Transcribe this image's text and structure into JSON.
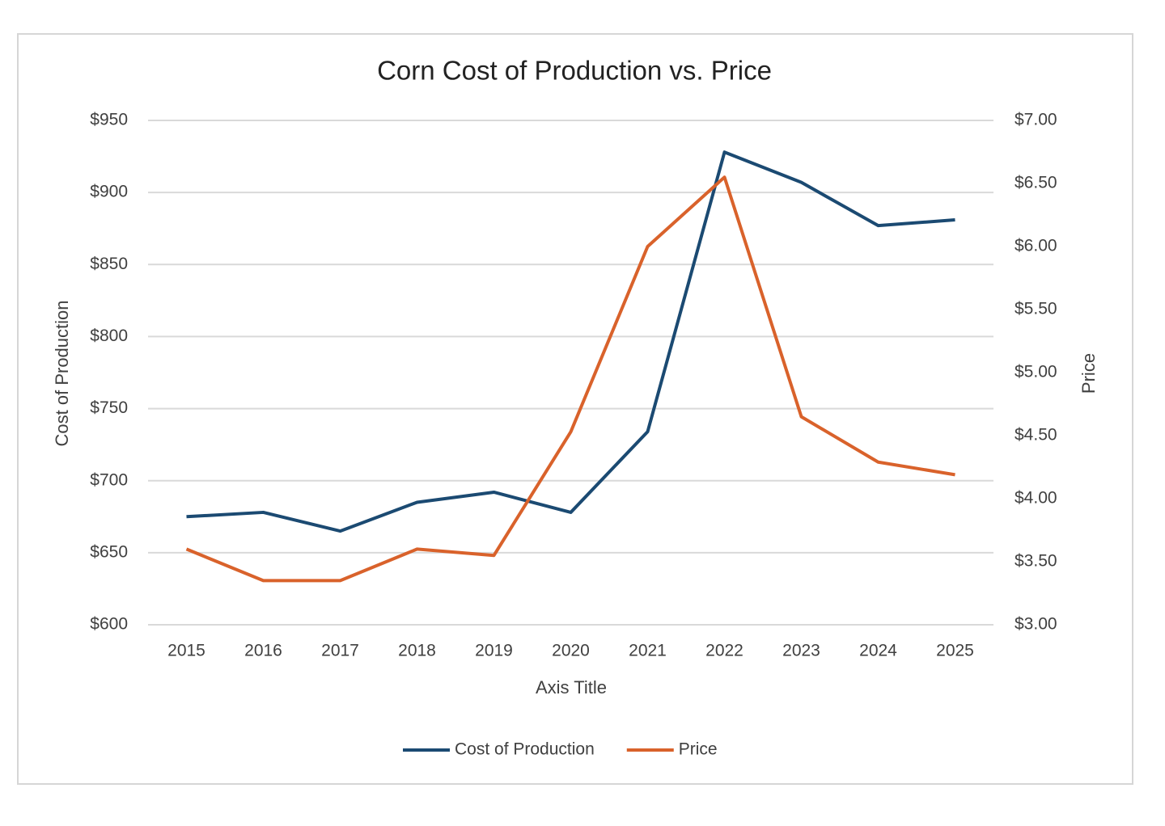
{
  "chart_data": {
    "type": "line",
    "title": "Corn Cost of Production vs. Price",
    "x_label": "Axis Title",
    "y_label": "Cost of Production",
    "y2_label": "Price",
    "categories": [
      "2015",
      "2016",
      "2017",
      "2018",
      "2019",
      "2020",
      "2021",
      "2022",
      "2023",
      "2024",
      "2025"
    ],
    "series": [
      {
        "name": "Cost of Production",
        "color": "#1b4a72",
        "values": [
          675,
          678,
          665,
          685,
          692,
          678,
          734,
          928,
          907,
          877,
          881
        ]
      },
      {
        "name": "Price",
        "color": "#d9622b",
        "axis": "y2",
        "values": [
          3.6,
          3.35,
          3.35,
          3.6,
          3.55,
          4.53,
          6.0,
          6.55,
          4.65,
          4.29,
          4.19
        ]
      }
    ],
    "ylim": [
      600,
      950
    ],
    "yticks": [
      {
        "value": 600,
        "label": "$600"
      },
      {
        "value": 650,
        "label": "$650"
      },
      {
        "value": 700,
        "label": "$700"
      },
      {
        "value": 750,
        "label": "$750"
      },
      {
        "value": 800,
        "label": "$800"
      },
      {
        "value": 850,
        "label": "$850"
      },
      {
        "value": 900,
        "label": "$900"
      },
      {
        "value": 950,
        "label": "$950"
      }
    ],
    "y2lim": [
      3,
      7
    ],
    "y2ticks": [
      {
        "value": 3,
        "label": "$3.00"
      },
      {
        "value": 3.5,
        "label": "$3.50"
      },
      {
        "value": 4,
        "label": "$4.00"
      },
      {
        "value": 4.5,
        "label": "$4.50"
      },
      {
        "value": 5,
        "label": "$5.00"
      },
      {
        "value": 5.5,
        "label": "$5.50"
      },
      {
        "value": 6,
        "label": "$6.00"
      },
      {
        "value": 6.5,
        "label": "$6.50"
      },
      {
        "value": 7,
        "label": "$7.00"
      }
    ],
    "grid": true,
    "legend": "bottom"
  }
}
